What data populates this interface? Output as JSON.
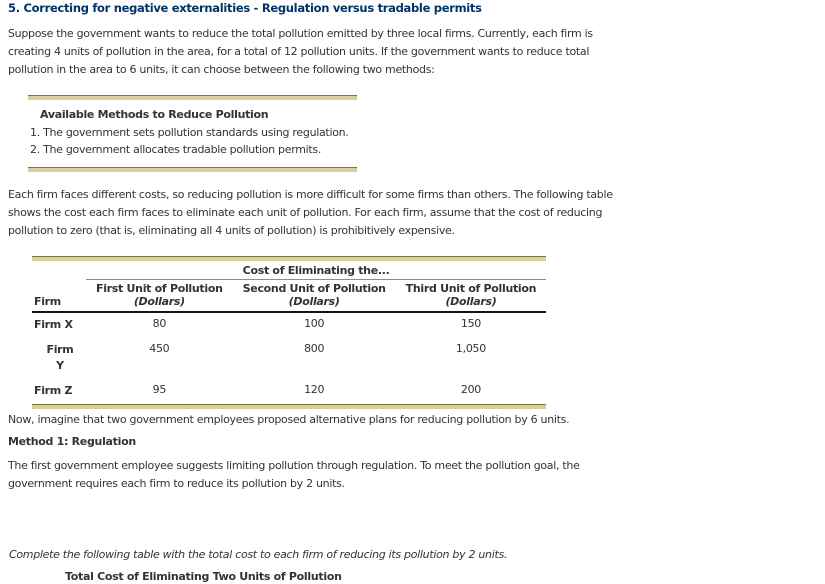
{
  "page": {
    "title": "5. Correcting for negative externalities - Regulation versus tradable permits"
  },
  "intro_paragraph": "Suppose the government wants to reduce the total pollution emitted by three local firms. Currently, each firm is creating 4 units of pollution in the area, for a total of 12 pollution units. If the government wants to reduce total pollution in the area to 6 units, it can choose between the following two methods:",
  "methods_box": {
    "title": "Available Methods to Reduce Pollution",
    "items": [
      "1. The government sets pollution standards using regulation.",
      "2. The government allocates tradable pollution permits."
    ]
  },
  "costs_paragraph": "Each firm faces different costs, so reducing pollution is more difficult for some firms than others. The following table shows the cost each firm faces to eliminate each unit of pollution. For each firm, assume that the cost of reducing pollution to zero (that is, eliminating all 4 units of pollution) is prohibitively expensive.",
  "cost_table": {
    "span_header": "Cost of Eliminating the...",
    "firm_header": "Firm",
    "columns": [
      {
        "label": "First Unit of Pollution",
        "sub": "(Dollars)"
      },
      {
        "label": "Second Unit of Pollution",
        "sub": "(Dollars)"
      },
      {
        "label": "Third Unit of Pollution",
        "sub": "(Dollars)"
      }
    ],
    "rows": [
      {
        "firm": "Firm X",
        "firm2": "",
        "values": [
          "80",
          "100",
          "150"
        ]
      },
      {
        "firm": "Firm",
        "firm2": "Y",
        "values": [
          "450",
          "800",
          "1,050"
        ]
      },
      {
        "firm": "Firm Z",
        "firm2": "",
        "values": [
          "95",
          "120",
          "200"
        ]
      }
    ]
  },
  "proposal_paragraph": "Now, imagine that two government employees proposed alternative plans for reducing pollution by 6 units.",
  "method1": {
    "heading": "Method 1: Regulation",
    "body": "The first government employee suggests limiting pollution through regulation. To meet the pollution goal, the government requires each firm to reduce its pollution by 2 units."
  },
  "instruction": "Complete the following table with the total cost to each firm of reducing its pollution by 2 units.",
  "total_table": {
    "title": "Total Cost of Eliminating Two Units of Pollution"
  },
  "colors": {
    "title_navy": "#003366",
    "rule_tan": "#d9cf9e",
    "rule_dark_edge": "#7e7347",
    "body_text": "#333333"
  }
}
